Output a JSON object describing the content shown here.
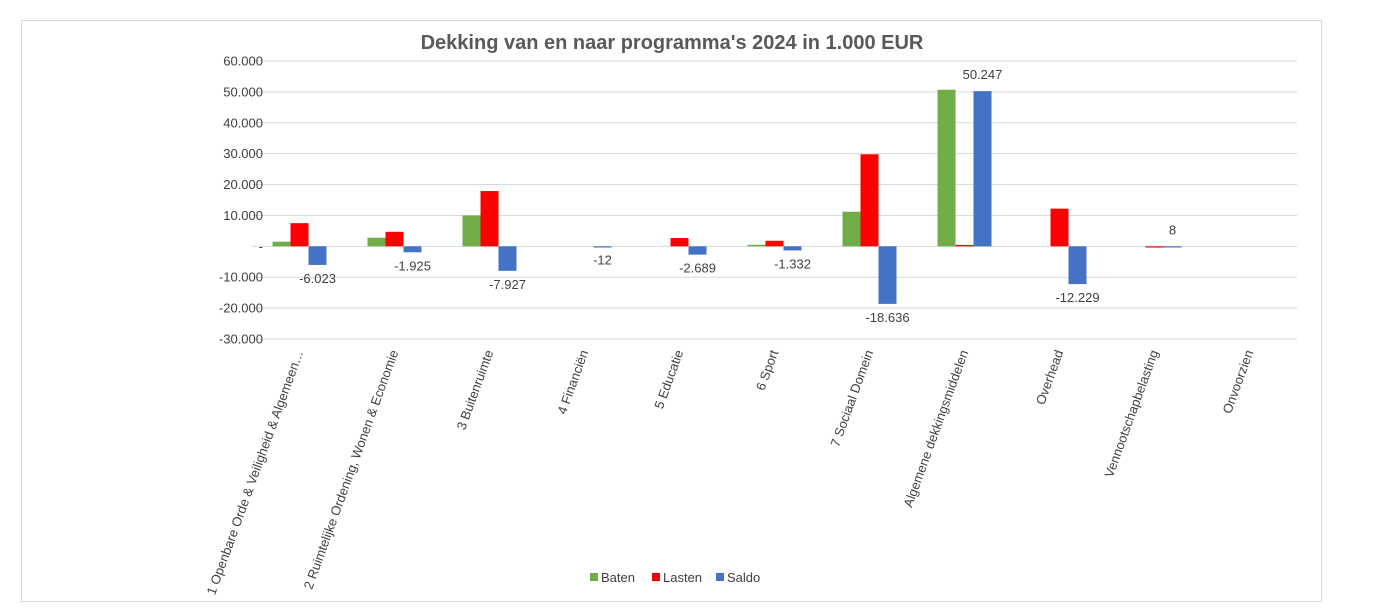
{
  "chart_data": {
    "type": "bar",
    "title": "Dekking van en naar programma's 2024 in 1.000 EUR",
    "categories": [
      "1 Openbare Orde & Veiligheid & Algemeen…",
      "2 Ruimtelijke Ordening, Wonen & Economie",
      "3 Buitenruimte",
      "4 Financiën",
      "5 Educatie",
      "6 Sport",
      "7 Sociaal Domein",
      "Algemene dekkingsmiddelen",
      "Overhead",
      "Vennootschapbelasting",
      "Onvoorzien"
    ],
    "series": [
      {
        "name": "Baten",
        "color": "#70ad47",
        "values": [
          1500,
          2800,
          10000,
          0,
          0,
          500,
          11200,
          50700,
          0,
          0,
          0
        ]
      },
      {
        "name": "Lasten",
        "color": "#ff0000",
        "values": [
          7500,
          4700,
          17900,
          0,
          2700,
          1800,
          29800,
          450,
          12200,
          -8,
          0
        ]
      },
      {
        "name": "Saldo",
        "color": "#4472c4",
        "values": [
          -6023,
          -1925,
          -7927,
          -12,
          -2689,
          -1332,
          -18636,
          50247,
          -12229,
          8,
          0
        ]
      }
    ],
    "data_labels": {
      "series": "Saldo",
      "texts": [
        "-6.023",
        "-1.925",
        "-7.927",
        "-12",
        "-2.689",
        "-1.332",
        "-18.636",
        "50.247",
        "-12.229",
        "8",
        ""
      ]
    },
    "ylim": [
      -30000,
      60000
    ],
    "yticks": [
      60000,
      50000,
      40000,
      30000,
      20000,
      10000,
      0,
      -10000,
      -20000,
      -30000
    ],
    "ytick_labels": [
      "60.000",
      "50.000",
      "40.000",
      "30.000",
      "20.000",
      "10.000",
      "-",
      "-10.000",
      "-20.000",
      "-30.000"
    ],
    "xlabel": "",
    "ylabel": "",
    "grid": true,
    "legend_position": "bottom"
  }
}
